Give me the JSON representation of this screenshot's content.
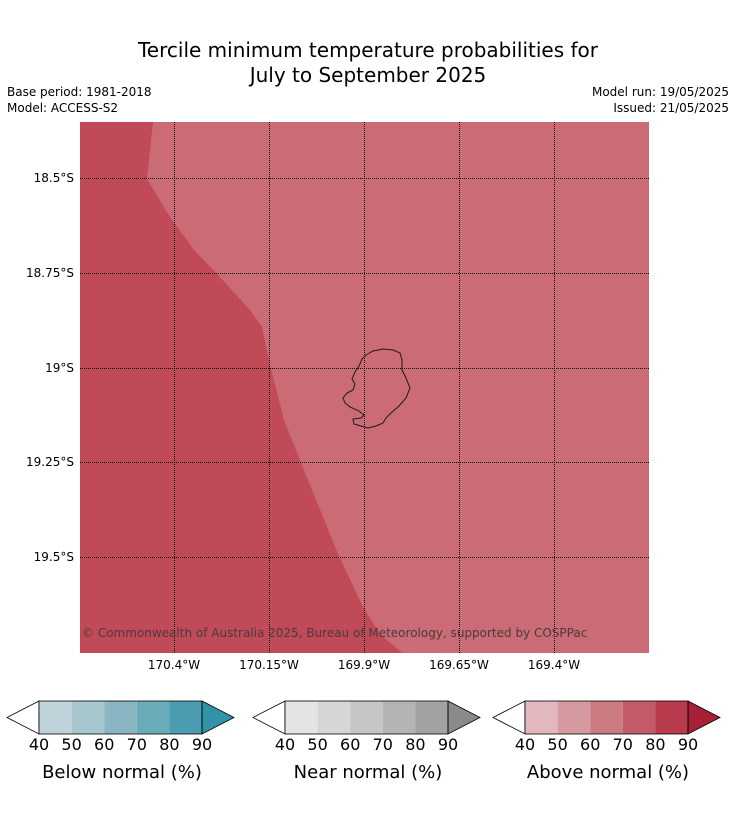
{
  "title_line1": "Tercile minimum temperature probabilities for",
  "title_line2": "July to September 2025",
  "base_period": "Base period: 1981-2018",
  "model": "Model: ACCESS-S2",
  "model_run": "Model run: 19/05/2025",
  "issued": "Issued: 21/05/2025",
  "copyright": "© Commonwealth of Australia 2025, Bureau of Meteorology, supported by COSPPac",
  "lat_labels": [
    "18.5°S",
    "18.75°S",
    "19°S",
    "19.25°S",
    "19.5°S"
  ],
  "lon_labels": [
    "170.4°W",
    "170.15°W",
    "169.9°W",
    "169.65°W",
    "169.4°W"
  ],
  "legends": [
    {
      "label": "Below normal (%)",
      "ticks": [
        "40",
        "50",
        "60",
        "70",
        "80",
        "90"
      ],
      "colors": [
        "#bfd3da",
        "#a7c6cd",
        "#8ab5c2",
        "#6aacba",
        "#4a9db0",
        "#3292a6"
      ]
    },
    {
      "label": "Near normal (%)",
      "ticks": [
        "40",
        "50",
        "60",
        "70",
        "80",
        "90"
      ],
      "colors": [
        "#e4e4e4",
        "#d6d6d6",
        "#c6c6c6",
        "#b4b4b4",
        "#a2a2a2",
        "#8a8a8a"
      ]
    },
    {
      "label": "Above normal (%)",
      "ticks": [
        "40",
        "50",
        "60",
        "70",
        "80",
        "90"
      ],
      "colors": [
        "#e2b8bd",
        "#d59aa1",
        "#cc7a82",
        "#c45b68",
        "#b73a4d",
        "#a81f38"
      ]
    }
  ],
  "map_colors": {
    "above_60_70": "#cb6b75",
    "above_70_80": "#c04a57",
    "coastline": "#1a1a1a"
  }
}
